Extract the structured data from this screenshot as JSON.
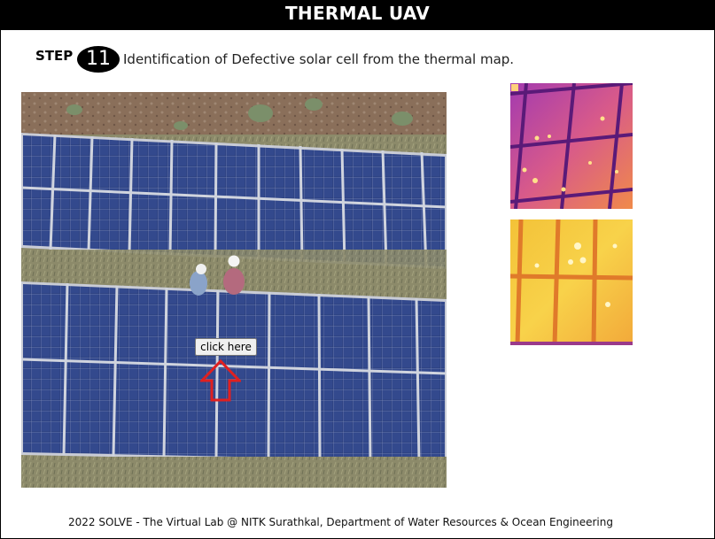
{
  "header": {
    "title": "THERMAL UAV"
  },
  "step": {
    "label": "STEP",
    "number": "11",
    "description": "Identification of Defective solar cell from the thermal map."
  },
  "photo": {
    "icon": "solar-field-photo"
  },
  "action": {
    "click_label": "click here",
    "arrow_icon": "up-arrow-icon",
    "arrow_color": "#e02020"
  },
  "thermal_images": [
    {
      "icon": "thermal-map-purple"
    },
    {
      "icon": "thermal-map-yellow"
    }
  ],
  "footer": {
    "text": "2022 SOLVE - The Virtual Lab @ NITK Surathkal, Department of Water Resources & Ocean Engineering"
  }
}
